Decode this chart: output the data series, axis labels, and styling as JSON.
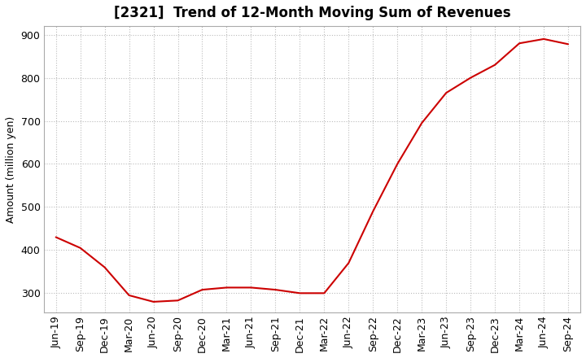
{
  "title": "[2321]  Trend of 12-Month Moving Sum of Revenues",
  "ylabel": "Amount (million yen)",
  "line_color": "#CC0000",
  "background_color": "#FFFFFF",
  "grid_color": "#BBBBBB",
  "ylim": [
    255,
    920
  ],
  "yticks": [
    300,
    400,
    500,
    600,
    700,
    800,
    900
  ],
  "x_labels": [
    "Jun-19",
    "Sep-19",
    "Dec-19",
    "Mar-20",
    "Jun-20",
    "Sep-20",
    "Dec-20",
    "Mar-21",
    "Jun-21",
    "Sep-21",
    "Dec-21",
    "Mar-22",
    "Jun-22",
    "Sep-22",
    "Dec-22",
    "Mar-23",
    "Jun-23",
    "Sep-23",
    "Dec-23",
    "Mar-24",
    "Jun-24",
    "Sep-24"
  ],
  "y_values": [
    430,
    405,
    360,
    295,
    280,
    283,
    308,
    313,
    313,
    308,
    300,
    300,
    370,
    490,
    600,
    695,
    765,
    800,
    830,
    880,
    890,
    878
  ],
  "title_fontsize": 12,
  "tick_fontsize": 9,
  "ylabel_fontsize": 9
}
